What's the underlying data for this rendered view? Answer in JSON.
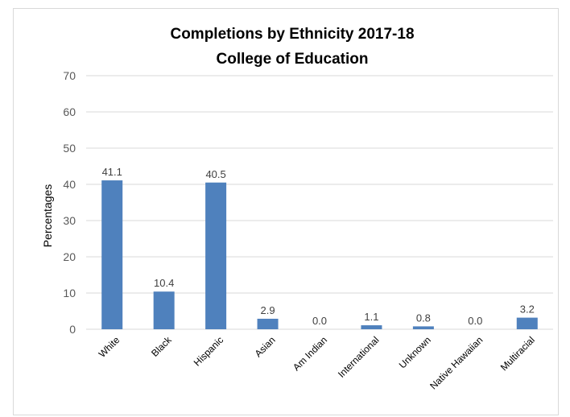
{
  "chart_data": {
    "type": "bar",
    "title": "Completions by Ethnicity 2017-18",
    "subtitle": "College of Education",
    "xlabel": "",
    "ylabel": "Percentages",
    "categories": [
      "White",
      "Black",
      "Hispanic",
      "Asian",
      "Am Indian",
      "International",
      "Unknown",
      "Native Hawaiian",
      "Multiracial"
    ],
    "values": [
      41.1,
      10.4,
      40.5,
      2.9,
      0.0,
      1.1,
      0.8,
      0.0,
      3.2
    ],
    "value_labels": [
      "41.1",
      "10.4",
      "40.5",
      "2.9",
      "0.0",
      "1.1",
      "0.8",
      "0.0",
      "3.2"
    ],
    "ylim": [
      0,
      70
    ],
    "yticks": [
      0,
      10,
      20,
      30,
      40,
      50,
      60,
      70
    ],
    "grid": true,
    "legend": "none",
    "bar_color": "#4f81bd",
    "grid_color": "#d9d9d9"
  }
}
